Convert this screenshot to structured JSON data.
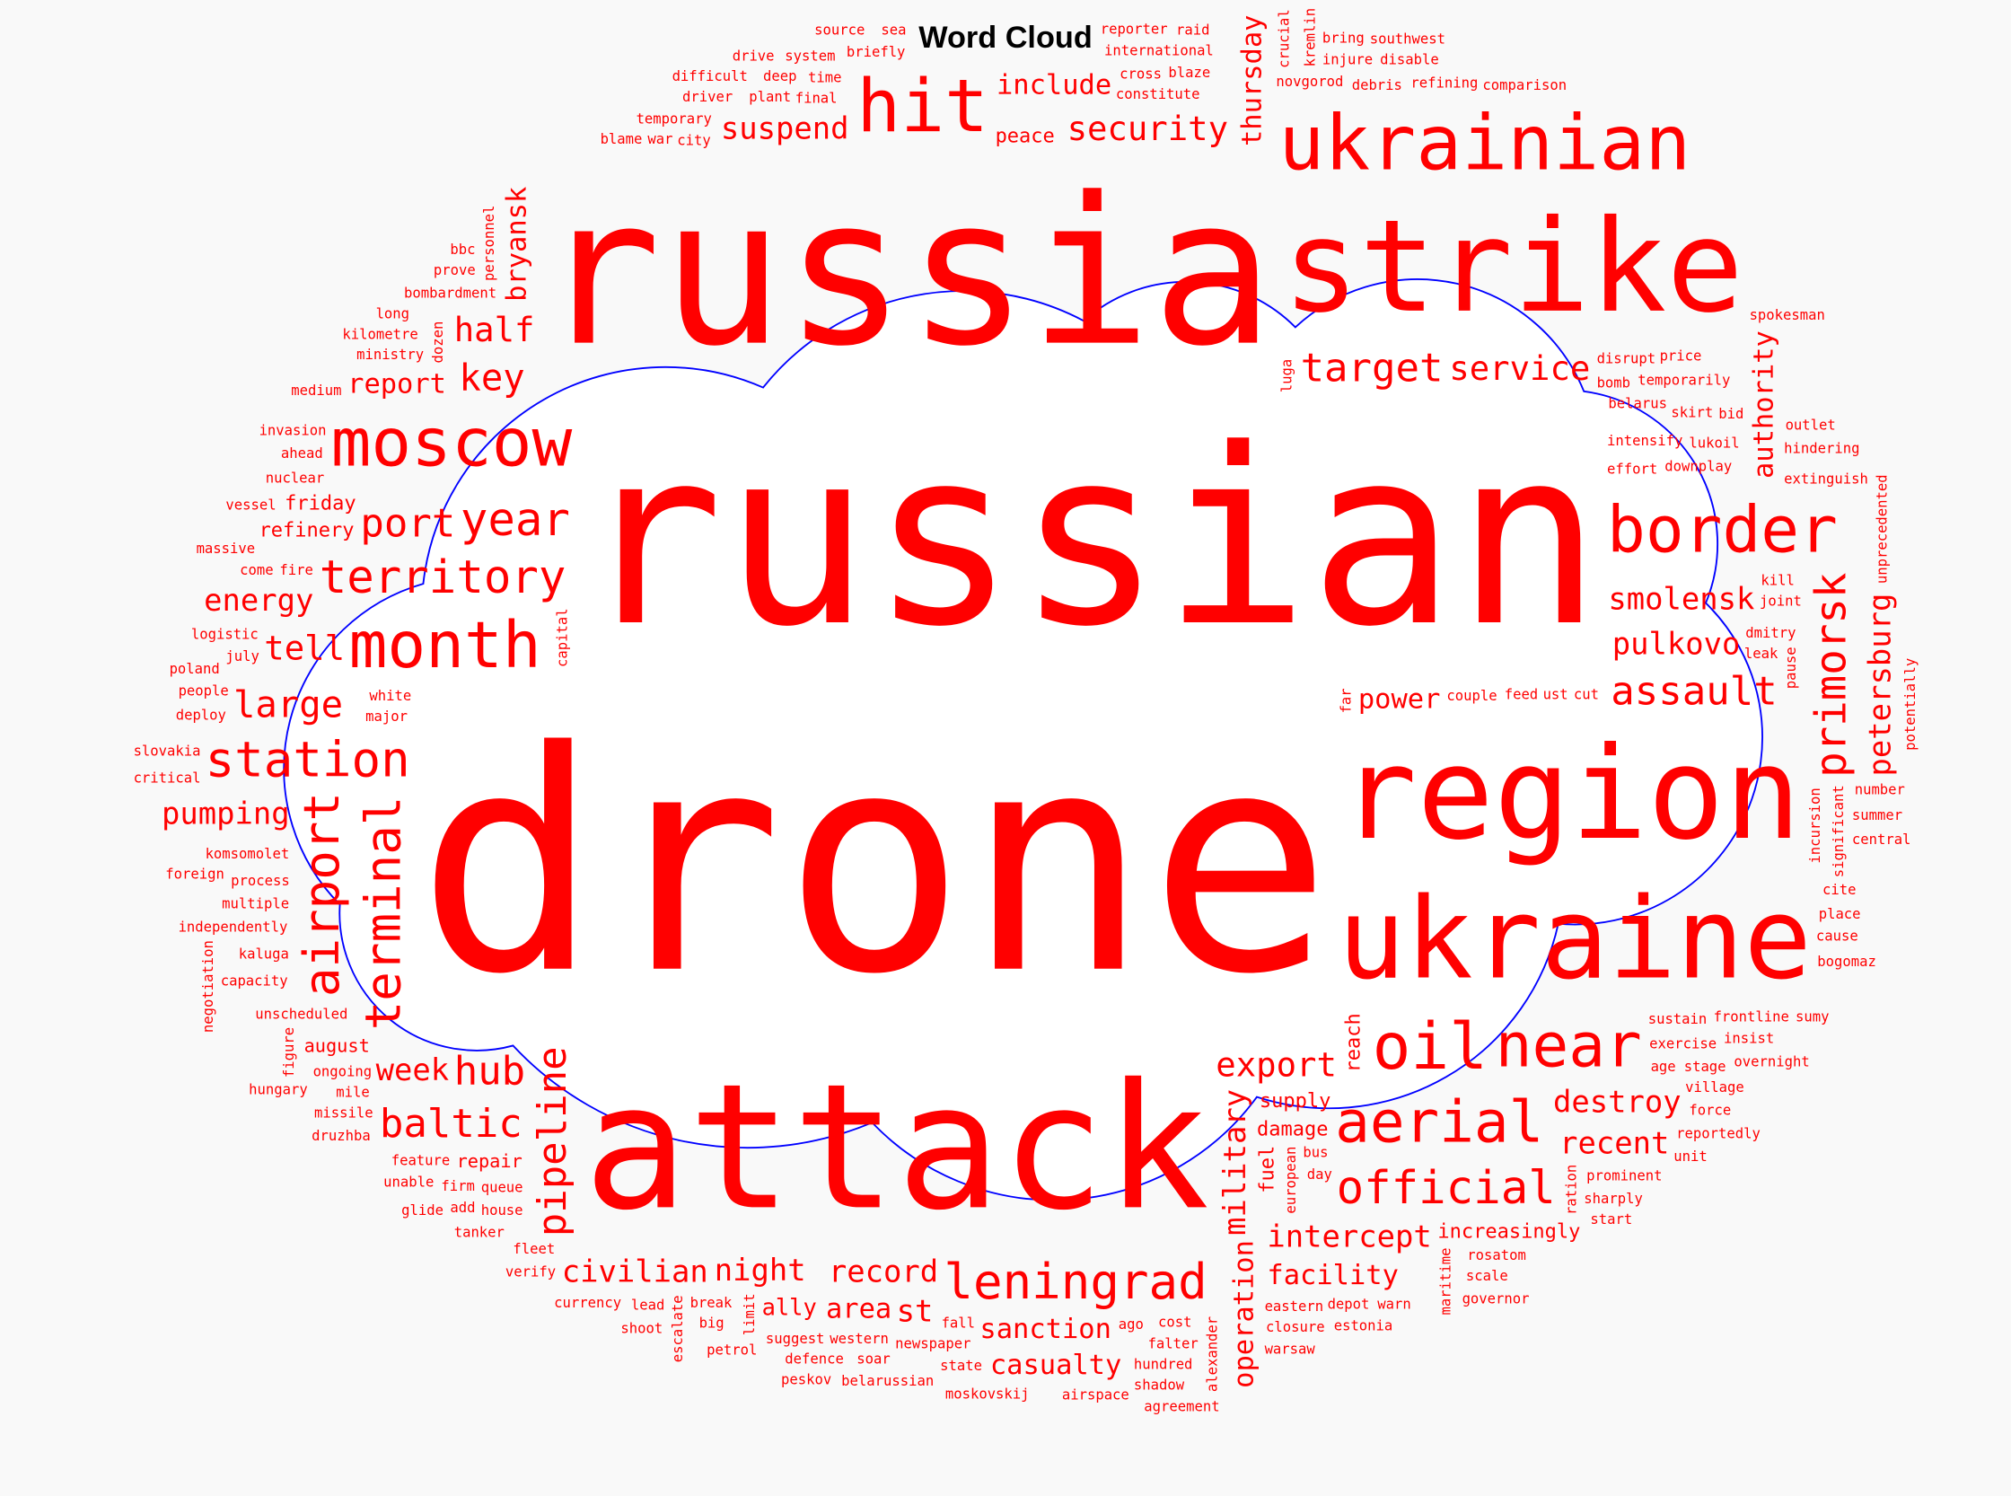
{
  "chart_data": {
    "type": "wordcloud",
    "title": "Word Cloud",
    "colors": {
      "words": "#ff0000",
      "outline": "#0000ff",
      "background": "#f9f9f9"
    },
    "mask_shape": "cloud",
    "words": [
      {
        "text": "drone",
        "weight": 1.0
      },
      {
        "text": "russian",
        "weight": 0.8
      },
      {
        "text": "russia",
        "weight": 0.67
      },
      {
        "text": "attack",
        "weight": 0.57
      },
      {
        "text": "region",
        "weight": 0.42
      },
      {
        "text": "strike",
        "weight": 0.42
      },
      {
        "text": "ukraine",
        "weight": 0.37
      },
      {
        "text": "ukrainian",
        "weight": 0.25
      },
      {
        "text": "hit",
        "weight": 0.24
      },
      {
        "text": "moscow",
        "weight": 0.22
      },
      {
        "text": "month",
        "weight": 0.21
      },
      {
        "text": "border",
        "weight": 0.21
      },
      {
        "text": "oil",
        "weight": 0.21
      },
      {
        "text": "near",
        "weight": 0.2
      },
      {
        "text": "aerial",
        "weight": 0.19
      },
      {
        "text": "terminal",
        "weight": 0.16
      },
      {
        "text": "station",
        "weight": 0.16
      },
      {
        "text": "airport",
        "weight": 0.16
      },
      {
        "text": "leningrad",
        "weight": 0.16
      },
      {
        "text": "territory",
        "weight": 0.15
      },
      {
        "text": "official",
        "weight": 0.15
      },
      {
        "text": "year",
        "weight": 0.15
      },
      {
        "text": "primorsk",
        "weight": 0.14
      },
      {
        "text": "target",
        "weight": 0.13
      },
      {
        "text": "assault",
        "weight": 0.13
      },
      {
        "text": "pipeline",
        "weight": 0.13
      },
      {
        "text": "port",
        "weight": 0.13
      },
      {
        "text": "hub",
        "weight": 0.13
      },
      {
        "text": "baltic",
        "weight": 0.13
      },
      {
        "text": "key",
        "weight": 0.12
      },
      {
        "text": "large",
        "weight": 0.12
      },
      {
        "text": "half",
        "weight": 0.11
      },
      {
        "text": "export",
        "weight": 0.11
      },
      {
        "text": "security",
        "weight": 0.11
      },
      {
        "text": "service",
        "weight": 0.11
      },
      {
        "text": "tell",
        "weight": 0.11
      },
      {
        "text": "petersburg",
        "weight": 0.1
      },
      {
        "text": "military",
        "weight": 0.1
      },
      {
        "text": "pulkovo",
        "weight": 0.1
      },
      {
        "text": "suspend",
        "weight": 0.1
      },
      {
        "text": "energy",
        "weight": 0.1
      },
      {
        "text": "pumping",
        "weight": 0.1
      },
      {
        "text": "night",
        "weight": 0.1
      },
      {
        "text": "smolensk",
        "weight": 0.1
      },
      {
        "text": "destroy",
        "weight": 0.1
      },
      {
        "text": "record",
        "weight": 0.1
      },
      {
        "text": "intercept",
        "weight": 0.1
      },
      {
        "text": "recent",
        "weight": 0.1
      },
      {
        "text": "week",
        "weight": 0.1
      },
      {
        "text": "civilian",
        "weight": 0.1
      },
      {
        "text": "st",
        "weight": 0.1
      },
      {
        "text": "include",
        "weight": 0.09
      },
      {
        "text": "report",
        "weight": 0.09
      },
      {
        "text": "area",
        "weight": 0.09
      },
      {
        "text": "operation",
        "weight": 0.09
      },
      {
        "text": "authority",
        "weight": 0.09
      },
      {
        "text": "thursday",
        "weight": 0.09
      },
      {
        "text": "bryansk",
        "weight": 0.09
      },
      {
        "text": "sanction",
        "weight": 0.09
      },
      {
        "text": "power",
        "weight": 0.09
      },
      {
        "text": "facility",
        "weight": 0.09
      },
      {
        "text": "casualty",
        "weight": 0.09
      },
      {
        "text": "ally",
        "weight": 0.075
      },
      {
        "text": "refinery",
        "weight": 0.065
      },
      {
        "text": "increasingly",
        "weight": 0.065
      },
      {
        "text": "friday",
        "weight": 0.065
      },
      {
        "text": "peace",
        "weight": 0.065
      },
      {
        "text": "supply",
        "weight": 0.065
      },
      {
        "text": "damage",
        "weight": 0.065
      },
      {
        "text": "fuel",
        "weight": 0.065
      },
      {
        "text": "reach",
        "weight": 0.065
      },
      {
        "text": "august",
        "weight": 0.06
      },
      {
        "text": "repair",
        "weight": 0.06
      },
      {
        "text": "bombardment",
        "weight": 0.046
      },
      {
        "text": "dozen",
        "weight": 0.046
      },
      {
        "text": "ministry",
        "weight": 0.046
      },
      {
        "text": "capital",
        "weight": 0.046
      },
      {
        "text": "white",
        "weight": 0.046
      },
      {
        "text": "major",
        "weight": 0.046
      },
      {
        "text": "fire",
        "weight": 0.046
      },
      {
        "text": "nuclear",
        "weight": 0.046
      },
      {
        "text": "ahead",
        "weight": 0.046
      },
      {
        "text": "personnel",
        "weight": 0.046
      },
      {
        "text": "kilometre",
        "weight": 0.046
      },
      {
        "text": "prove",
        "weight": 0.046
      },
      {
        "text": "come",
        "weight": 0.046
      },
      {
        "text": "long",
        "weight": 0.046
      },
      {
        "text": "july",
        "weight": 0.046
      },
      {
        "text": "logistic",
        "weight": 0.046
      },
      {
        "text": "invasion",
        "weight": 0.046
      },
      {
        "text": "medium",
        "weight": 0.046
      },
      {
        "text": "city",
        "weight": 0.046
      },
      {
        "text": "bbc",
        "weight": 0.046
      },
      {
        "text": "vessel",
        "weight": 0.046
      },
      {
        "text": "komsomolet",
        "weight": 0.046
      },
      {
        "text": "couple",
        "weight": 0.046
      },
      {
        "text": "people",
        "weight": 0.046
      },
      {
        "text": "process",
        "weight": 0.046
      },
      {
        "text": "multiple",
        "weight": 0.046
      },
      {
        "text": "deploy",
        "weight": 0.046
      },
      {
        "text": "unscheduled",
        "weight": 0.046
      },
      {
        "text": "independently",
        "weight": 0.046
      },
      {
        "text": "queue",
        "weight": 0.046
      },
      {
        "text": "house",
        "weight": 0.046
      },
      {
        "text": "poland",
        "weight": 0.046
      },
      {
        "text": "massive",
        "weight": 0.046
      },
      {
        "text": "kaluga",
        "weight": 0.046
      },
      {
        "text": "slovakia",
        "weight": 0.046
      },
      {
        "text": "limit",
        "weight": 0.046
      },
      {
        "text": "critical",
        "weight": 0.046
      },
      {
        "text": "foreign",
        "weight": 0.046
      },
      {
        "text": "firm",
        "weight": 0.046
      },
      {
        "text": "european",
        "weight": 0.046
      },
      {
        "text": "feature",
        "weight": 0.046
      },
      {
        "text": "fall",
        "weight": 0.046
      },
      {
        "text": "ongoing",
        "weight": 0.046
      },
      {
        "text": "mile",
        "weight": 0.046
      },
      {
        "text": "fleet",
        "weight": 0.046
      },
      {
        "text": "capacity",
        "weight": 0.046
      },
      {
        "text": "western",
        "weight": 0.046
      },
      {
        "text": "missile",
        "weight": 0.046
      },
      {
        "text": "break",
        "weight": 0.046
      },
      {
        "text": "newspaper",
        "weight": 0.046
      },
      {
        "text": "figure",
        "weight": 0.046
      },
      {
        "text": "negotiation",
        "weight": 0.046
      },
      {
        "text": "druzhba",
        "weight": 0.046
      },
      {
        "text": "suggest",
        "weight": 0.046
      },
      {
        "text": "escalate",
        "weight": 0.046
      },
      {
        "text": "add",
        "weight": 0.046
      },
      {
        "text": "hungary",
        "weight": 0.046
      },
      {
        "text": "unable",
        "weight": 0.046
      },
      {
        "text": "tanker",
        "weight": 0.046
      },
      {
        "text": "lead",
        "weight": 0.046
      },
      {
        "text": "verify",
        "weight": 0.046
      },
      {
        "text": "currency",
        "weight": 0.046
      },
      {
        "text": "state",
        "weight": 0.046
      },
      {
        "text": "petrol",
        "weight": 0.046
      },
      {
        "text": "big",
        "weight": 0.046
      },
      {
        "text": "defence",
        "weight": 0.046
      },
      {
        "text": "shoot",
        "weight": 0.046
      },
      {
        "text": "belarussian",
        "weight": 0.046
      },
      {
        "text": "peskov",
        "weight": 0.046
      },
      {
        "text": "glide",
        "weight": 0.046
      },
      {
        "text": "ago",
        "weight": 0.046
      },
      {
        "text": "moskovskij",
        "weight": 0.046
      },
      {
        "text": "constitute",
        "weight": 0.046
      },
      {
        "text": "cross",
        "weight": 0.046
      },
      {
        "text": "final",
        "weight": 0.046
      },
      {
        "text": "plant",
        "weight": 0.046
      },
      {
        "text": "time",
        "weight": 0.046
      },
      {
        "text": "temporary",
        "weight": 0.046
      },
      {
        "text": "international",
        "weight": 0.046
      },
      {
        "text": "blaze",
        "weight": 0.046
      },
      {
        "text": "reporter",
        "weight": 0.046
      },
      {
        "text": "briefly",
        "weight": 0.046
      },
      {
        "text": "sea",
        "weight": 0.046
      },
      {
        "text": "novgorod",
        "weight": 0.046
      },
      {
        "text": "war",
        "weight": 0.046
      },
      {
        "text": "blame",
        "weight": 0.046
      },
      {
        "text": "driver",
        "weight": 0.046
      },
      {
        "text": "deep",
        "weight": 0.046
      },
      {
        "text": "system",
        "weight": 0.046
      },
      {
        "text": "source",
        "weight": 0.046
      },
      {
        "text": "crucial",
        "weight": 0.046
      },
      {
        "text": "kremlin",
        "weight": 0.046
      },
      {
        "text": "raid",
        "weight": 0.046
      },
      {
        "text": "debris",
        "weight": 0.046
      },
      {
        "text": "feed",
        "weight": 0.046
      },
      {
        "text": "difficult",
        "weight": 0.046
      },
      {
        "text": "drive",
        "weight": 0.046
      },
      {
        "text": "ust",
        "weight": 0.046
      },
      {
        "text": "effort",
        "weight": 0.046
      },
      {
        "text": "intensify",
        "weight": 0.046
      },
      {
        "text": "cost",
        "weight": 0.046
      },
      {
        "text": "cut",
        "weight": 0.046
      },
      {
        "text": "bus",
        "weight": 0.046
      },
      {
        "text": "falter",
        "weight": 0.046
      },
      {
        "text": "day",
        "weight": 0.046
      },
      {
        "text": "alexander",
        "weight": 0.046
      },
      {
        "text": "eastern",
        "weight": 0.046
      },
      {
        "text": "soar",
        "weight": 0.046
      },
      {
        "text": "hundred",
        "weight": 0.046
      },
      {
        "text": "shadow",
        "weight": 0.046
      },
      {
        "text": "closure",
        "weight": 0.046
      },
      {
        "text": "airspace",
        "weight": 0.046
      },
      {
        "text": "warsaw",
        "weight": 0.046
      },
      {
        "text": "agreement",
        "weight": 0.046
      },
      {
        "text": "refining",
        "weight": 0.046
      },
      {
        "text": "injure",
        "weight": 0.046
      },
      {
        "text": "bring",
        "weight": 0.046
      },
      {
        "text": "disrupt",
        "weight": 0.046
      },
      {
        "text": "bomb",
        "weight": 0.046
      },
      {
        "text": "belarus",
        "weight": 0.046
      },
      {
        "text": "temporarily",
        "weight": 0.046
      },
      {
        "text": "luga",
        "weight": 0.046
      },
      {
        "text": "disable",
        "weight": 0.046
      },
      {
        "text": "skirt",
        "weight": 0.046
      },
      {
        "text": "downplay",
        "weight": 0.046
      },
      {
        "text": "price",
        "weight": 0.046
      },
      {
        "text": "comparison",
        "weight": 0.046
      },
      {
        "text": "spokesman",
        "weight": 0.046
      },
      {
        "text": "lukoil",
        "weight": 0.046
      },
      {
        "text": "dmitry",
        "weight": 0.046
      },
      {
        "text": "bid",
        "weight": 0.046
      },
      {
        "text": "kill",
        "weight": 0.046
      },
      {
        "text": "southwest",
        "weight": 0.046
      },
      {
        "text": "extinguish",
        "weight": 0.046
      },
      {
        "text": "leak",
        "weight": 0.046
      },
      {
        "text": "hindering",
        "weight": 0.046
      },
      {
        "text": "joint",
        "weight": 0.046
      },
      {
        "text": "pause",
        "weight": 0.046
      },
      {
        "text": "outlet",
        "weight": 0.046
      },
      {
        "text": "incursion",
        "weight": 0.046
      },
      {
        "text": "far",
        "weight": 0.046
      },
      {
        "text": "significant",
        "weight": 0.046
      },
      {
        "text": "unprecedented",
        "weight": 0.046
      },
      {
        "text": "sustain",
        "weight": 0.046
      },
      {
        "text": "number",
        "weight": 0.046
      },
      {
        "text": "summer",
        "weight": 0.046
      },
      {
        "text": "exercise",
        "weight": 0.046
      },
      {
        "text": "age",
        "weight": 0.046
      },
      {
        "text": "frontline",
        "weight": 0.046
      },
      {
        "text": "central",
        "weight": 0.046
      },
      {
        "text": "cite",
        "weight": 0.046
      },
      {
        "text": "potentially",
        "weight": 0.046
      },
      {
        "text": "ration",
        "weight": 0.046
      },
      {
        "text": "maritime",
        "weight": 0.046
      },
      {
        "text": "stage",
        "weight": 0.046
      },
      {
        "text": "prominent",
        "weight": 0.046
      },
      {
        "text": "insist",
        "weight": 0.046
      },
      {
        "text": "village",
        "weight": 0.046
      },
      {
        "text": "rosatom",
        "weight": 0.046
      },
      {
        "text": "place",
        "weight": 0.046
      },
      {
        "text": "overnight",
        "weight": 0.046
      },
      {
        "text": "depot",
        "weight": 0.046
      },
      {
        "text": "cause",
        "weight": 0.046
      },
      {
        "text": "sharply",
        "weight": 0.046
      },
      {
        "text": "bogomaz",
        "weight": 0.046
      },
      {
        "text": "force",
        "weight": 0.046
      },
      {
        "text": "reportedly",
        "weight": 0.046
      },
      {
        "text": "sumy",
        "weight": 0.046
      },
      {
        "text": "warn",
        "weight": 0.046
      },
      {
        "text": "unit",
        "weight": 0.046
      },
      {
        "text": "scale",
        "weight": 0.046
      },
      {
        "text": "start",
        "weight": 0.046
      },
      {
        "text": "estonia",
        "weight": 0.046
      },
      {
        "text": "governor",
        "weight": 0.046
      }
    ]
  }
}
